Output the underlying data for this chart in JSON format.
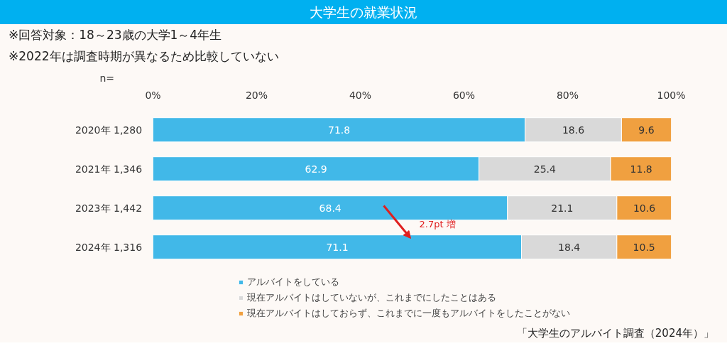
{
  "chart_data": {
    "type": "bar",
    "orientation": "horizontal",
    "stacked": true,
    "title": "大学生の就業状況",
    "subtitle": "※回答対象：18～23歳の大学1～4年生",
    "categories": [
      "2020年  1,280",
      "2021年  1,346",
      "2023年  1,442",
      "2024年  1,316"
    ],
    "series": [
      {
        "name": "アルバイトをしている",
        "color": "#41b8e8",
        "values": [
          71.8,
          62.9,
          68.4,
          71.1
        ]
      },
      {
        "name": "現在アルバイトはしていないが、これまでにしたことはある",
        "color": "#d9d9d9",
        "values": [
          18.6,
          25.4,
          21.1,
          18.4
        ]
      },
      {
        "name": "現在アルバイトはしておらず、これまでに一度もアルバイトをしたことがない",
        "color": "#f0a040",
        "values": [
          9.6,
          11.8,
          10.6,
          10.5
        ]
      }
    ],
    "xlim": [
      0,
      100
    ],
    "xticks": [
      {
        "value": 0,
        "label": "0%"
      },
      {
        "value": 20,
        "label": "20%"
      },
      {
        "value": 40,
        "label": "40%"
      },
      {
        "value": 60,
        "label": "60%"
      },
      {
        "value": 80,
        "label": "80%"
      },
      {
        "value": 100,
        "label": "100%"
      }
    ],
    "data_labels": true,
    "legend": "bottom",
    "grid": false,
    "annotations": [
      "※2022年は調査時期が異なるため比較していない",
      "n=",
      "2.7pt 増",
      "「大学生のアルバイト調査（2024年）」"
    ]
  }
}
